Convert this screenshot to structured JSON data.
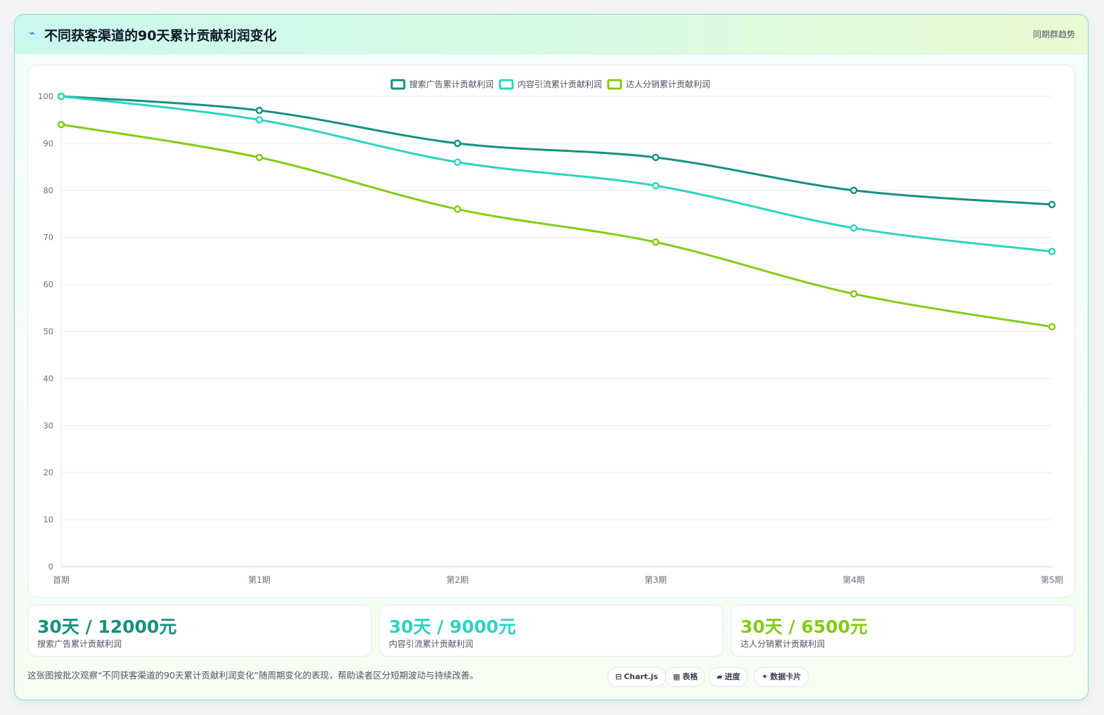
{
  "header": {
    "icon": "bolt-icon",
    "title": "不同获客渠道的90天累计贡献利润变化",
    "tag": "同期群趋势"
  },
  "chart_data": {
    "type": "line",
    "title": "",
    "xlabel": "",
    "ylabel": "",
    "categories": [
      "首期",
      "第1期",
      "第2期",
      "第3期",
      "第4期",
      "第5期"
    ],
    "ylim": [
      0,
      100
    ],
    "yticks": [
      0,
      10,
      20,
      30,
      40,
      50,
      60,
      70,
      80,
      90,
      100
    ],
    "grid": true,
    "legend_position": "top-center",
    "series": [
      {
        "name": "搜索广告累计贡献利润",
        "color": "#14917f",
        "values": [
          100,
          97,
          90,
          87,
          80,
          77
        ]
      },
      {
        "name": "内容引流累计贡献利润",
        "color": "#2dd4bf",
        "values": [
          100,
          95,
          86,
          81,
          72,
          67
        ]
      },
      {
        "name": "达人分销累计贡献利润",
        "color": "#84cc16",
        "values": [
          94,
          87,
          76,
          69,
          58,
          51
        ]
      }
    ]
  },
  "kpis": [
    {
      "value": "30天 / 12000元",
      "label": "搜索广告累计贡献利润",
      "color": "#14917f"
    },
    {
      "value": "30天 / 9000元",
      "label": "内容引流累计贡献利润",
      "color": "#2dd4bf"
    },
    {
      "value": "30天 / 6500元",
      "label": "达人分销累计贡献利润",
      "color": "#84cc16"
    }
  ],
  "footnote": "这张图按批次观察“不同获客渠道的90天累计贡献利润变化”随周期变化的表现，帮助读者区分短期波动与持续改善。",
  "pills": [
    {
      "icon": "⊟",
      "icon_name": "chart-icon",
      "label": "Chart.js"
    },
    {
      "icon": "▦",
      "icon_name": "table-icon",
      "label": "表格"
    },
    {
      "icon": "▰",
      "icon_name": "progress-icon",
      "label": "进度"
    },
    {
      "icon": "✦",
      "icon_name": "sparkle-icon",
      "label": "数据卡片"
    }
  ]
}
